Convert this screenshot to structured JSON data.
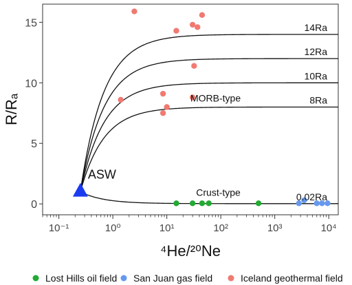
{
  "chart_data": {
    "type": "scatter",
    "xlabel": "⁴He/²⁰Ne",
    "ylabel": "R/Rₐ",
    "x_scale": "log",
    "xlim": [
      0.05,
      15000
    ],
    "ylim": [
      -0.9,
      16.5
    ],
    "x_ticks": [
      {
        "value": 0.1,
        "label": "10⁻¹"
      },
      {
        "value": 1,
        "label": "10⁰"
      },
      {
        "value": 10,
        "label": "10¹"
      },
      {
        "value": 100,
        "label": "10²"
      },
      {
        "value": 1000,
        "label": "10³"
      },
      {
        "value": 10000,
        "label": "10⁴"
      }
    ],
    "y_ticks": [
      {
        "value": 0,
        "label": "0"
      },
      {
        "value": 5,
        "label": "5"
      },
      {
        "value": 10,
        "label": "10"
      },
      {
        "value": 15,
        "label": "15"
      }
    ],
    "grid": false,
    "legend_position": "bottom",
    "endmember": {
      "label": "ASW",
      "x": 0.25,
      "y": 1.0,
      "color": "#1a3cf0"
    },
    "mixing_curves": [
      {
        "name": "14Ra",
        "r_end": 14
      },
      {
        "name": "12Ra",
        "r_end": 12
      },
      {
        "name": "10Ra",
        "r_end": 10
      },
      {
        "name": "8Ra",
        "r_end": 8
      },
      {
        "name": "0.02Ra",
        "r_end": 0.02
      }
    ],
    "curve_annotations": [
      {
        "text": "MORB-type",
        "x": 80,
        "y": 8.45
      },
      {
        "text": "Crust-type",
        "x": 90,
        "y": 0.65
      }
    ],
    "series": [
      {
        "name": "Lost Hills oil field",
        "color": "#22aa33",
        "points": [
          [
            15,
            0.05
          ],
          [
            30,
            0.05
          ],
          [
            45,
            0.05
          ],
          [
            60,
            0.05
          ],
          [
            500,
            0.05
          ]
        ]
      },
      {
        "name": "San Juan gas field",
        "color": "#6699ee",
        "points": [
          [
            2800,
            0.05
          ],
          [
            3500,
            0.3
          ],
          [
            6000,
            0.05
          ],
          [
            7500,
            0.05
          ],
          [
            9500,
            0.05
          ]
        ]
      },
      {
        "name": "Iceland geothermal field",
        "color": "#f07a72",
        "points": [
          [
            2.5,
            15.9
          ],
          [
            15,
            14.3
          ],
          [
            30,
            14.8
          ],
          [
            37,
            14.6
          ],
          [
            45,
            15.6
          ],
          [
            32,
            11.4
          ],
          [
            8.5,
            9.1
          ],
          [
            1.4,
            8.6
          ],
          [
            10,
            8.0
          ],
          [
            8.5,
            7.5
          ],
          [
            30,
            8.8
          ]
        ]
      }
    ]
  }
}
